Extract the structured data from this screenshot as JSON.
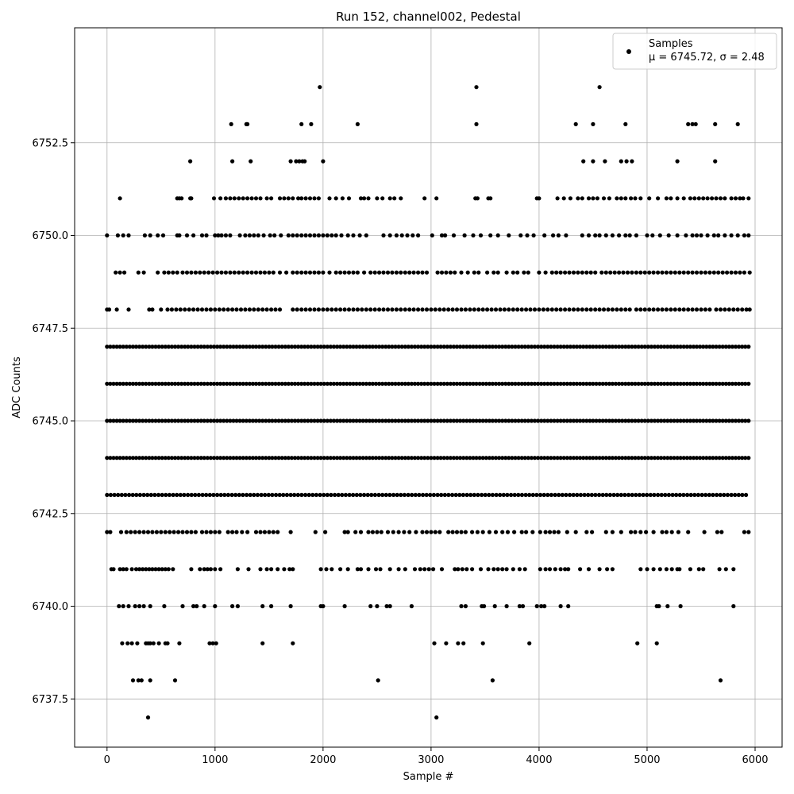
{
  "chart_data": {
    "type": "scatter",
    "title": "Run 152, channel002, Pedestal",
    "xlabel": "Sample #",
    "ylabel": "ADC Counts",
    "xlim": [
      -300,
      6250
    ],
    "ylim": [
      6736.2,
      6755.6
    ],
    "xticks": [
      0,
      1000,
      2000,
      3000,
      4000,
      5000,
      6000
    ],
    "yticks": [
      6737.5,
      6740.0,
      6742.5,
      6745.0,
      6747.5,
      6750.0,
      6752.5
    ],
    "ytick_labels": [
      "6737.5",
      "6740.0",
      "6742.5",
      "6745.0",
      "6747.5",
      "6750.0",
      "6752.5"
    ],
    "grid": true,
    "legend_position": "top-right",
    "marker_color": "#000000",
    "series": [
      {
        "name": "Samples",
        "label_line2": "μ = 6745.72, σ = 2.48",
        "rows": [
          {
            "y": 6754,
            "x": [
              1970,
              3420,
              4560
            ]
          },
          {
            "y": 6753,
            "x": [
              1150,
              1290,
              1300,
              1800,
              1890,
              2320,
              3420,
              4340,
              4500,
              4800,
              5380,
              5420,
              5450,
              5630,
              5840
            ]
          },
          {
            "y": 6752,
            "x": [
              770,
              1160,
              1330,
              1700,
              1750,
              1780,
              1810,
              1830,
              2000,
              4410,
              4500,
              4610,
              4760,
              4810,
              4860,
              5280,
              5630
            ]
          },
          {
            "y": 6751,
            "x": [
              120,
              650,
              670,
              690,
              770,
              780,
              990,
              1050,
              1100,
              1140,
              1180,
              1220,
              1260,
              1300,
              1340,
              1380,
              1420,
              1480,
              1520,
              1600,
              1640,
              1680,
              1720,
              1770,
              1800,
              1840,
              1880,
              1920,
              1960,
              2060,
              2120,
              2180,
              2240,
              2350,
              2380,
              2420,
              2500,
              2550,
              2620,
              2660,
              2720,
              2940,
              3050,
              3410,
              3430,
              3530,
              3550,
              3980,
              4000,
              4170,
              4230,
              4290,
              4360,
              4400,
              4460,
              4500,
              4540,
              4600,
              4650,
              4720,
              4760,
              4800,
              4850,
              4890,
              4940,
              5020,
              5100,
              5180,
              5220,
              5280,
              5340,
              5400,
              5440,
              5480,
              5520,
              5560,
              5600,
              5640,
              5680,
              5720,
              5780,
              5820,
              5860,
              5890,
              5940
            ]
          },
          {
            "y": 6750,
            "x": [
              0,
              100,
              150,
              200,
              350,
              400,
              470,
              520,
              650,
              670,
              740,
              800,
              880,
              920,
              1000,
              1030,
              1060,
              1100,
              1140,
              1230,
              1280,
              1320,
              1360,
              1400,
              1450,
              1510,
              1550,
              1610,
              1680,
              1720,
              1760,
              1800,
              1840,
              1880,
              1920,
              1960,
              2000,
              2040,
              2080,
              2120,
              2170,
              2230,
              2280,
              2340,
              2400,
              2560,
              2620,
              2680,
              2730,
              2780,
              2830,
              2880,
              3010,
              3100,
              3130,
              3210,
              3310,
              3390,
              3460,
              3550,
              3620,
              3720,
              3830,
              3890,
              3950,
              4050,
              4130,
              4180,
              4250,
              4400,
              4460,
              4520,
              4560,
              4620,
              4680,
              4740,
              4800,
              4840,
              4900,
              5000,
              5050,
              5120,
              5200,
              5280,
              5360,
              5420,
              5460,
              5500,
              5560,
              5620,
              5660,
              5720,
              5780,
              5840,
              5900,
              5940
            ]
          },
          {
            "y": 6749,
            "x": [
              80,
              120,
              160,
              290,
              340,
              470,
              530,
              570,
              610,
              650,
              700,
              740,
              780,
              820,
              860,
              900,
              940,
              980,
              1020,
              1060,
              1100,
              1140,
              1180,
              1220,
              1260,
              1300,
              1340,
              1380,
              1420,
              1460,
              1500,
              1540,
              1600,
              1660,
              1720,
              1760,
              1800,
              1840,
              1880,
              1920,
              1960,
              2000,
              2060,
              2120,
              2160,
              2200,
              2240,
              2280,
              2320,
              2380,
              2440,
              2480,
              2520,
              2560,
              2600,
              2640,
              2680,
              2720,
              2760,
              2800,
              2840,
              2880,
              2920,
              2960,
              3060,
              3100,
              3140,
              3180,
              3220,
              3280,
              3340,
              3400,
              3440,
              3520,
              3580,
              3620,
              3700,
              3760,
              3800,
              3860,
              3900,
              4000,
              4060,
              4120,
              4160,
              4200,
              4240,
              4280,
              4320,
              4360,
              4400,
              4440,
              4480,
              4520,
              4580,
              4620,
              4660,
              4700,
              4740,
              4780,
              4820,
              4860,
              4900,
              4940,
              4980,
              5020,
              5060,
              5100,
              5140,
              5180,
              5220,
              5260,
              5300,
              5340,
              5380,
              5420,
              5460,
              5500,
              5540,
              5580,
              5620,
              5660,
              5700,
              5740,
              5780,
              5820,
              5860,
              5900,
              5950
            ]
          },
          {
            "y": 6748,
            "x": [
              0,
              20,
              90,
              200,
              390,
              420,
              500,
              560,
              600,
              640,
              680,
              720,
              760,
              800,
              840,
              880,
              920,
              960,
              1000,
              1040,
              1080,
              1120,
              1160,
              1200,
              1240,
              1280,
              1320,
              1360,
              1400,
              1440,
              1480,
              1520,
              1560,
              1600,
              1720,
              1760,
              1800,
              1840,
              1880,
              1920,
              1960,
              2000,
              2040,
              2080,
              2120,
              2160,
              2200,
              2240,
              2280,
              2320,
              2360,
              2400,
              2440,
              2480,
              2520,
              2560,
              2600,
              2640,
              2680,
              2720,
              2760,
              2800,
              2840,
              2880,
              2920,
              2960,
              3000,
              3040,
              3080,
              3120,
              3160,
              3200,
              3240,
              3280,
              3320,
              3360,
              3400,
              3440,
              3480,
              3520,
              3560,
              3600,
              3640,
              3680,
              3720,
              3760,
              3800,
              3840,
              3880,
              3920,
              3960,
              4000,
              4040,
              4080,
              4120,
              4160,
              4200,
              4240,
              4280,
              4320,
              4360,
              4400,
              4440,
              4480,
              4520,
              4560,
              4600,
              4640,
              4680,
              4720,
              4760,
              4800,
              4840,
              4900,
              4940,
              4980,
              5020,
              5060,
              5100,
              5140,
              5180,
              5220,
              5260,
              5300,
              5340,
              5380,
              5420,
              5460,
              5500,
              5540,
              5580,
              5640,
              5680,
              5720,
              5760,
              5800,
              5840,
              5880,
              5920,
              5950
            ]
          },
          {
            "y": 6747,
            "step": 30,
            "from": 0,
            "to": 5950
          },
          {
            "y": 6746,
            "step": 30,
            "from": 0,
            "to": 5950
          },
          {
            "y": 6745,
            "step": 30,
            "from": 0,
            "to": 5950
          },
          {
            "y": 6744,
            "step": 30,
            "from": 0,
            "to": 5950
          },
          {
            "y": 6743,
            "step": 34,
            "from": 0,
            "to": 5940
          },
          {
            "y": 6742,
            "x": [
              0,
              30,
              130,
              180,
              220,
              260,
              300,
              340,
              380,
              420,
              460,
              500,
              540,
              580,
              620,
              660,
              700,
              740,
              780,
              820,
              880,
              920,
              960,
              1000,
              1040,
              1120,
              1160,
              1200,
              1250,
              1300,
              1380,
              1420,
              1460,
              1500,
              1540,
              1580,
              1700,
              1930,
              2020,
              2200,
              2230,
              2300,
              2350,
              2420,
              2460,
              2500,
              2540,
              2600,
              2650,
              2700,
              2750,
              2800,
              2860,
              2920,
              2960,
              3000,
              3040,
              3080,
              3160,
              3200,
              3240,
              3280,
              3320,
              3380,
              3430,
              3480,
              3540,
              3600,
              3660,
              3710,
              3770,
              3840,
              3880,
              3940,
              4010,
              4060,
              4100,
              4140,
              4180,
              4260,
              4340,
              4440,
              4490,
              4620,
              4680,
              4760,
              4850,
              4890,
              4940,
              4990,
              5060,
              5140,
              5180,
              5230,
              5290,
              5380,
              5530,
              5650,
              5690,
              5900,
              5940
            ]
          },
          {
            "y": 6741,
            "x": [
              40,
              60,
              120,
              150,
              180,
              230,
              270,
              300,
              330,
              360,
              390,
              420,
              450,
              480,
              510,
              540,
              570,
              610,
              780,
              860,
              900,
              930,
              960,
              1000,
              1050,
              1210,
              1310,
              1420,
              1480,
              1520,
              1580,
              1640,
              1690,
              1720,
              1980,
              2030,
              2080,
              2160,
              2230,
              2320,
              2350,
              2420,
              2490,
              2530,
              2620,
              2700,
              2760,
              2850,
              2900,
              2940,
              2980,
              3020,
              3100,
              3220,
              3250,
              3290,
              3330,
              3380,
              3460,
              3530,
              3580,
              3620,
              3660,
              3700,
              3760,
              3820,
              3870,
              4010,
              4060,
              4100,
              4150,
              4200,
              4240,
              4270,
              4380,
              4460,
              4560,
              4630,
              4680,
              4940,
              5000,
              5060,
              5120,
              5180,
              5230,
              5280,
              5300,
              5400,
              5480,
              5520,
              5670,
              5730,
              5800
            ]
          },
          {
            "y": 6740,
            "x": [
              110,
              150,
              200,
              260,
              300,
              340,
              400,
              530,
              700,
              800,
              830,
              900,
              1000,
              1160,
              1210,
              1440,
              1520,
              1700,
              1980,
              2000,
              2200,
              2440,
              2500,
              2590,
              2620,
              2820,
              3280,
              3320,
              3470,
              3490,
              3590,
              3700,
              3820,
              3850,
              3980,
              4020,
              4050,
              4200,
              4270,
              5090,
              5110,
              5190,
              5310,
              5800
            ]
          },
          {
            "y": 6739,
            "x": [
              140,
              190,
              230,
              280,
              360,
              380,
              400,
              430,
              480,
              540,
              560,
              670,
              950,
              980,
              1010,
              1440,
              1720,
              3030,
              3140,
              3250,
              3300,
              3480,
              3910,
              4910,
              5090
            ]
          },
          {
            "y": 6738,
            "x": [
              240,
              290,
              320,
              400,
              630,
              2510,
              3570,
              5680
            ]
          },
          {
            "y": 6737,
            "x": [
              380,
              3050
            ]
          }
        ]
      }
    ]
  }
}
